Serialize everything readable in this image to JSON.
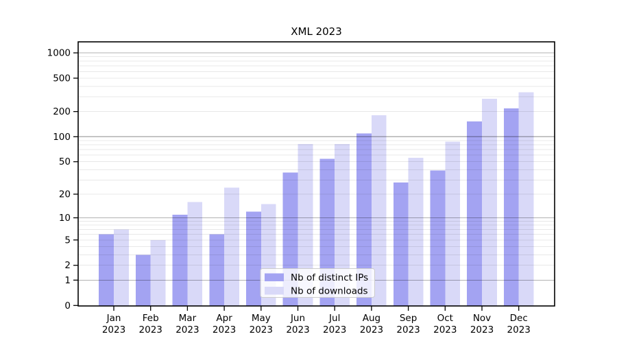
{
  "title": "XML 2023",
  "year_label": "2023",
  "colors": {
    "distinct_ips": "#a3a3f2",
    "downloads": "#d9d9f8",
    "major_grid": "rgba(0,0,0,0.30)",
    "minor_grid": "rgba(0,0,0,0.09)",
    "axis": "#000000",
    "legend_bg": "rgba(255,255,255,0.8)",
    "legend_border": "#cccccc",
    "background": "#ffffff"
  },
  "legend": {
    "items": [
      {
        "label": "Nb of distinct IPs",
        "swatch": "#a3a3f2"
      },
      {
        "label": "Nb of downloads",
        "swatch": "#d9d9f8"
      }
    ]
  },
  "chart_data": {
    "type": "bar",
    "title": "XML 2023",
    "categories": [
      "Jan",
      "Feb",
      "Mar",
      "Apr",
      "May",
      "Jun",
      "Jul",
      "Aug",
      "Sep",
      "Oct",
      "Nov",
      "Dec"
    ],
    "category_year": "2023",
    "series": [
      {
        "name": "Nb of distinct IPs",
        "color": "#a3a3f2",
        "values": [
          6,
          3,
          11,
          6,
          12,
          37,
          54,
          110,
          28,
          39,
          152,
          218
        ]
      },
      {
        "name": "Nb of downloads",
        "color": "#d9d9f8",
        "values": [
          7,
          5,
          16,
          24,
          15,
          82,
          82,
          180,
          56,
          87,
          285,
          340
        ]
      }
    ],
    "xlabel": "",
    "ylabel": "",
    "yscale": "log1p",
    "ylim": [
      0,
      1350
    ],
    "y_ticks": [
      0,
      1,
      2,
      5,
      10,
      20,
      50,
      100,
      200,
      500,
      1000
    ],
    "y_major_gridlines": [
      1,
      10,
      100,
      1000
    ],
    "y_minor_gridlines": [
      2,
      3,
      4,
      5,
      6,
      7,
      8,
      9,
      20,
      30,
      40,
      50,
      60,
      70,
      80,
      90,
      200,
      300,
      400,
      500,
      600,
      700,
      800,
      900
    ],
    "grid": true,
    "legend_position": "lower center"
  }
}
